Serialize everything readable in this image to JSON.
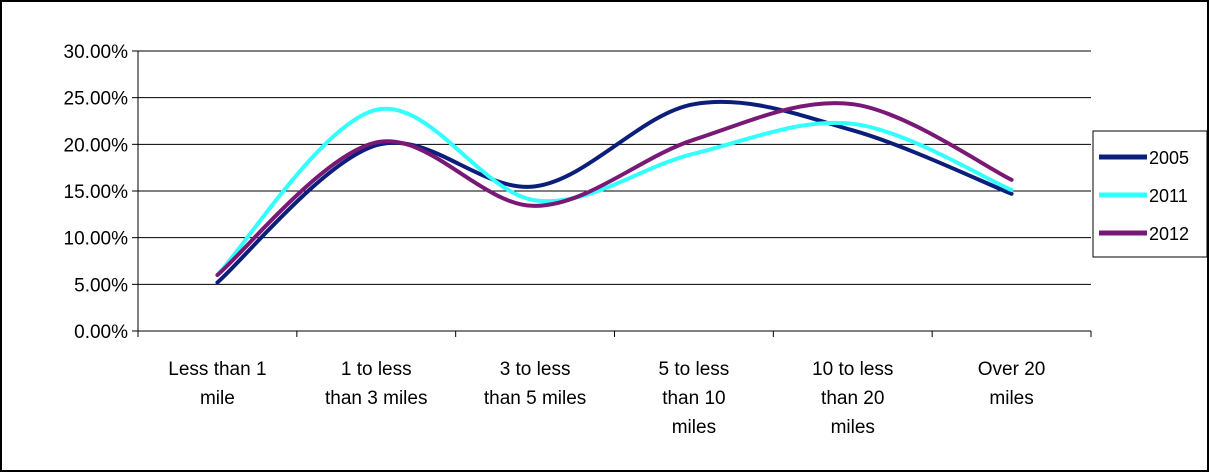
{
  "chart_data": {
    "type": "line",
    "categories": [
      [
        "Less than 1",
        "mile"
      ],
      [
        "1 to less",
        "than 3 miles"
      ],
      [
        "3 to less",
        "than 5 miles"
      ],
      [
        "5 to less",
        "than 10",
        "miles"
      ],
      [
        "10 to less",
        "than 20",
        "miles"
      ],
      [
        "Over 20",
        "miles"
      ]
    ],
    "series": [
      {
        "name": "2005",
        "color": "#0b1f7a",
        "values": [
          0.052,
          0.199,
          0.155,
          0.243,
          0.215,
          0.147
        ]
      },
      {
        "name": "2011",
        "color": "#33ffff",
        "values": [
          0.06,
          0.237,
          0.14,
          0.19,
          0.222,
          0.151
        ]
      },
      {
        "name": "2012",
        "color": "#7a1875",
        "values": [
          0.06,
          0.202,
          0.134,
          0.205,
          0.243,
          0.162
        ]
      }
    ],
    "ylim": [
      0,
      0.3
    ],
    "yticks": [
      "0.00%",
      "5.00%",
      "10.00%",
      "15.00%",
      "20.00%",
      "25.00%",
      "30.00%"
    ],
    "grid": true,
    "smooth": true,
    "legend_position": "right"
  }
}
